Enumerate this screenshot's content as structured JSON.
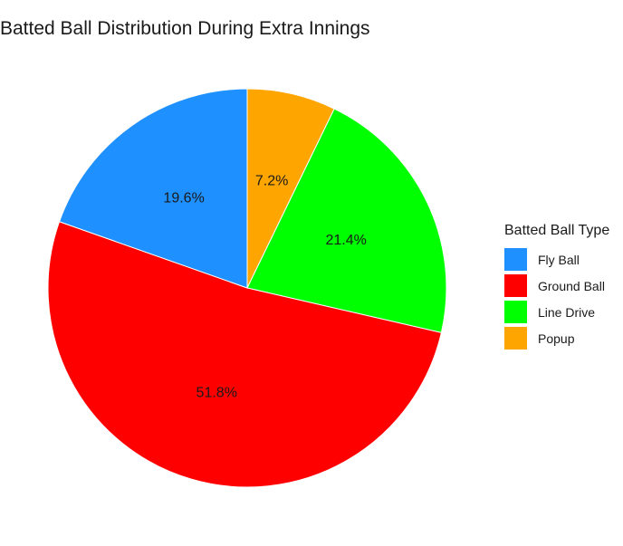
{
  "chart_data": {
    "type": "pie",
    "title": "Batted Ball Distribution During Extra Innings",
    "legend_title": "Batted Ball Type",
    "legend_position": "right",
    "slices": [
      {
        "label": "Fly Ball",
        "value": 19.6,
        "display": "19.6%",
        "color": "#1E90FF"
      },
      {
        "label": "Ground Ball",
        "value": 51.8,
        "display": "51.8%",
        "color": "#FF0000"
      },
      {
        "label": "Line Drive",
        "value": 21.4,
        "display": "21.4%",
        "color": "#00FF00"
      },
      {
        "label": "Popup",
        "value": 7.2,
        "display": "7.2%",
        "color": "#FFA500"
      }
    ],
    "direction": "clockwise",
    "start": "12 o'clock"
  }
}
